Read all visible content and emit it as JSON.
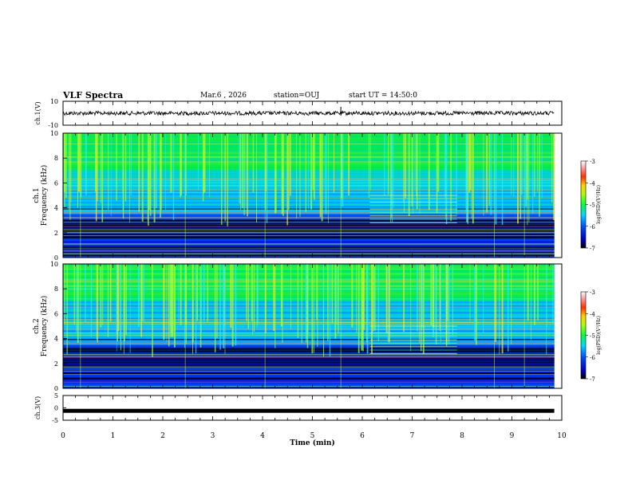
{
  "header": {
    "title": "VLF Spectra",
    "date": "Mar.6 , 2026",
    "station": "station=OUJ",
    "start_ut": "start UT = 14:50:0"
  },
  "chart_data": [
    {
      "type": "line",
      "name": "ch1-waveform",
      "ylabel": "ch.1(V)",
      "ylim": [
        -10,
        10
      ],
      "ytick_labels": [
        "-10",
        "10"
      ],
      "xlim": [
        0,
        10
      ],
      "level": 0,
      "x_end": 9.85
    },
    {
      "type": "heatmap",
      "name": "ch1-spectrogram",
      "ylabel_top": "ch.1",
      "ylabel": "Frequency (kHz)",
      "ylim": [
        0,
        10
      ],
      "yticks": [
        0,
        2,
        4,
        6,
        8,
        10
      ],
      "ytick_labels": [
        "0",
        "2",
        "4",
        "6",
        "8",
        "10"
      ],
      "xlim": [
        0,
        10
      ],
      "x_end": 9.85,
      "colorbar": {
        "label": "log(PSD)(V²/Hz)",
        "range": [
          -7,
          -3
        ],
        "ticks": [
          -7,
          -6,
          -5,
          -4,
          -3
        ],
        "tick_labels": [
          "-7",
          "-6",
          "-5",
          "-4",
          "-3"
        ]
      }
    },
    {
      "type": "heatmap",
      "name": "ch2-spectrogram",
      "ylabel_top": "ch.2",
      "ylabel": "Frequency (kHz)",
      "ylim": [
        0,
        10
      ],
      "yticks": [
        0,
        2,
        4,
        6,
        8,
        10
      ],
      "ytick_labels": [
        "0",
        "2",
        "4",
        "6",
        "8",
        "10"
      ],
      "xlim": [
        0,
        10
      ],
      "x_end": 9.85,
      "colorbar": {
        "label": "log(PSD)(V²/Hz)",
        "range": [
          -7,
          -3
        ],
        "ticks": [
          -7,
          -6,
          -5,
          -4,
          -3
        ],
        "tick_labels": [
          "-7",
          "-6",
          "-5",
          "-4",
          "-3"
        ]
      }
    },
    {
      "type": "line",
      "name": "ch3-waveform",
      "ylabel": "ch.3(V)",
      "ylim": [
        -5,
        5
      ],
      "ytick_labels": [
        "-5",
        "0",
        "5"
      ],
      "xlim": [
        0,
        10
      ],
      "level": -1.2,
      "x_end": 9.85,
      "xlabel": "Time (min)",
      "xticks": [
        0,
        1,
        2,
        3,
        4,
        5,
        6,
        7,
        8,
        9,
        10
      ],
      "xtick_labels": [
        "0",
        "1",
        "2",
        "3",
        "4",
        "5",
        "6",
        "7",
        "8",
        "9",
        "10"
      ]
    }
  ]
}
